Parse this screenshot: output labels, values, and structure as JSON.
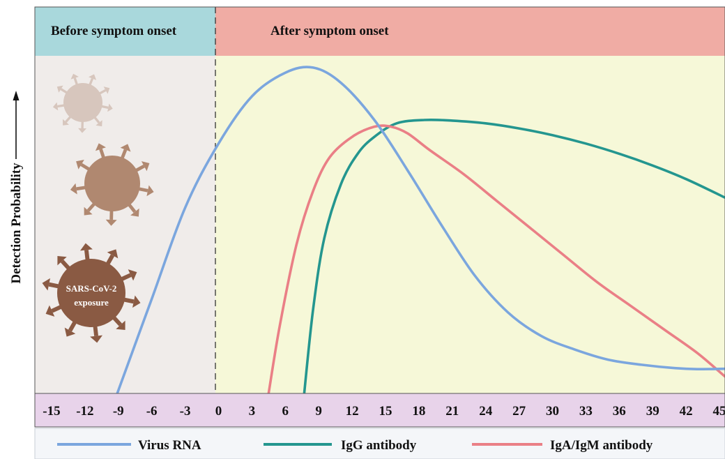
{
  "header": {
    "before_label": "Before symptom onset",
    "after_label": "After symptom onset",
    "before_color": "#a9d8dc",
    "after_color": "#f0aca4"
  },
  "panel": {
    "before_bg": "#f0ecea",
    "after_bg": "#f6f8d8"
  },
  "virus": {
    "label_line1": "SARS-CoV-2",
    "label_line2": "exposure",
    "icon_colors": [
      "#d7c6bd",
      "#b08870",
      "#8a5a43"
    ]
  },
  "chart_data": {
    "type": "line",
    "ylabel": "Detection Probability",
    "xlabel": "",
    "x_ticks": [
      -15,
      -12,
      -9,
      -6,
      -3,
      0,
      3,
      6,
      9,
      12,
      15,
      18,
      21,
      24,
      27,
      30,
      33,
      36,
      39,
      42,
      45
    ],
    "xlim": [
      -16.5,
      45.5
    ],
    "ylim": [
      0,
      1
    ],
    "grid": false,
    "legend_position": "bottom",
    "onset_day": 0,
    "series": [
      {
        "name": "Virus RNA",
        "color": "#7ba6de",
        "points": [
          [
            -9.1,
            0.0
          ],
          [
            -6,
            0.28
          ],
          [
            -3,
            0.55
          ],
          [
            0,
            0.74
          ],
          [
            3,
            0.88
          ],
          [
            6,
            0.95
          ],
          [
            8.5,
            0.965
          ],
          [
            11,
            0.92
          ],
          [
            14,
            0.81
          ],
          [
            17,
            0.66
          ],
          [
            20,
            0.5
          ],
          [
            23,
            0.35
          ],
          [
            26,
            0.24
          ],
          [
            29,
            0.17
          ],
          [
            32,
            0.13
          ],
          [
            35,
            0.1
          ],
          [
            38,
            0.085
          ],
          [
            41,
            0.075
          ],
          [
            43,
            0.072
          ],
          [
            45.5,
            0.073
          ]
        ]
      },
      {
        "name": "IgG antibody",
        "color": "#24968f",
        "points": [
          [
            7.7,
            0.0
          ],
          [
            8.5,
            0.25
          ],
          [
            9.5,
            0.46
          ],
          [
            11,
            0.62
          ],
          [
            12.5,
            0.71
          ],
          [
            14,
            0.76
          ],
          [
            16,
            0.8
          ],
          [
            18.5,
            0.81
          ],
          [
            21,
            0.808
          ],
          [
            24,
            0.8
          ],
          [
            27,
            0.785
          ],
          [
            30,
            0.765
          ],
          [
            33,
            0.74
          ],
          [
            36,
            0.71
          ],
          [
            39,
            0.675
          ],
          [
            42,
            0.635
          ],
          [
            45.5,
            0.58
          ]
        ]
      },
      {
        "name": "IgA/IgM antibody",
        "color": "#ea7f86",
        "points": [
          [
            4.5,
            0.0
          ],
          [
            5.5,
            0.2
          ],
          [
            7,
            0.44
          ],
          [
            8.5,
            0.6
          ],
          [
            10,
            0.7
          ],
          [
            12,
            0.76
          ],
          [
            14,
            0.79
          ],
          [
            15.5,
            0.79
          ],
          [
            17,
            0.77
          ],
          [
            19,
            0.72
          ],
          [
            22,
            0.65
          ],
          [
            25,
            0.57
          ],
          [
            28,
            0.49
          ],
          [
            31,
            0.41
          ],
          [
            34,
            0.33
          ],
          [
            37,
            0.26
          ],
          [
            40,
            0.19
          ],
          [
            43,
            0.12
          ],
          [
            45.5,
            0.05
          ]
        ]
      }
    ]
  }
}
